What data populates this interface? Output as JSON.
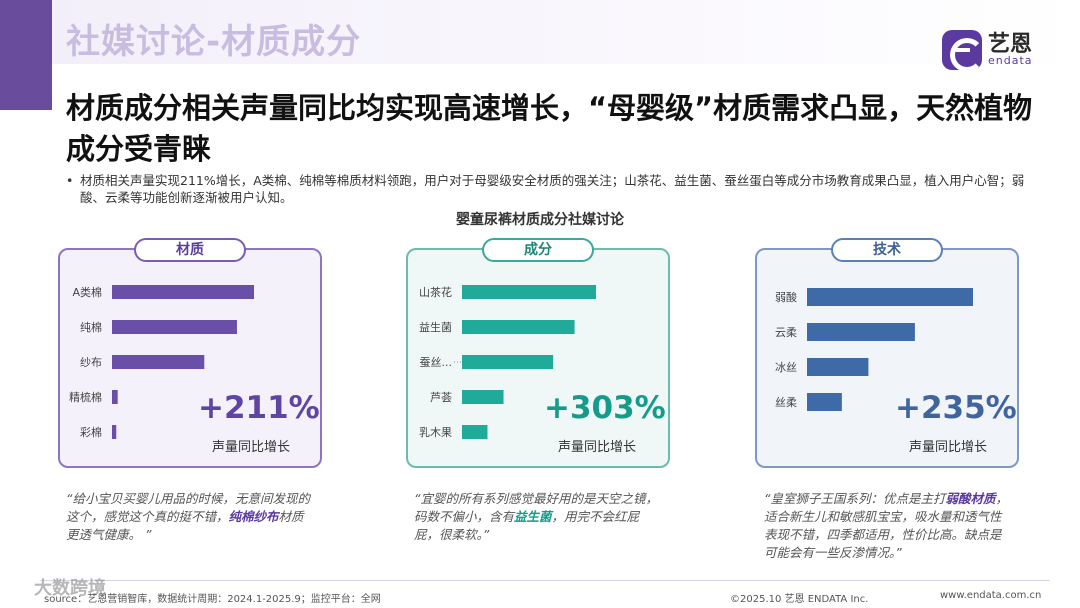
{
  "header": {
    "section_title": "社媒讨论-材质成分",
    "logo_cn": "艺恩",
    "logo_en": "endata"
  },
  "headline": "材质成分相关声量同比均实现高速增长，“母婴级”材质需求凸显，天然植物成分受青睐",
  "bullet": "材质相关声量实现211%增长，A类棉、纯棉等棉质材料领跑，用户对于母婴级安全材质的强关注；山茶花、益生菌、蚕丝蛋白等成分市场教育成果凸显，植入用户心智；弱酸、云柔等功能创新逐渐被用户认知。",
  "chart_title": "婴童尿裤材质成分社媒讨论",
  "colors": {
    "purple": "#6a4fa8",
    "teal": "#1faa99",
    "blue": "#3f6aa8"
  },
  "chart_data": [
    {
      "type": "bar",
      "orientation": "horizontal",
      "title": "材质",
      "categories": [
        "A类棉",
        "纯棉",
        "纱布",
        "精梳棉",
        "彩棉"
      ],
      "values": [
        100,
        88,
        65,
        4,
        3
      ],
      "xlim": [
        0,
        100
      ],
      "growth": "+211%",
      "growth_label": "声量同比增长",
      "color": "#6a4fa8"
    },
    {
      "type": "bar",
      "orientation": "horizontal",
      "title": "成分",
      "categories": [
        "山茶花",
        "益生菌",
        "蚕丝...",
        "芦荟",
        "乳木果"
      ],
      "values": [
        100,
        84,
        68,
        31,
        19
      ],
      "xlim": [
        0,
        100
      ],
      "growth": "+303%",
      "growth_label": "声量同比增长",
      "color": "#1faa99"
    },
    {
      "type": "bar",
      "orientation": "horizontal",
      "title": "技术",
      "categories": [
        "弱酸",
        "云柔",
        "冰丝",
        "丝柔"
      ],
      "values": [
        100,
        65,
        37,
        21
      ],
      "xlim": [
        0,
        100
      ],
      "growth": "+235%",
      "growth_label": "声量同比增长",
      "color": "#3f6aa8"
    }
  ],
  "quotes": [
    {
      "pre": "“给小宝贝买婴儿用品的时候，无意间发现的这个，感觉这个真的挺不错，",
      "hl": "纯棉纱布",
      "post": "材质更透气健康。 ”"
    },
    {
      "pre": "“宜婴的所有系列感觉最好用的是天空之镜，码数不偏小，含有",
      "hl": "益生菌",
      "post": "，用完不会红屁屁，很柔软。”"
    },
    {
      "pre": "“皇室狮子王国系列：优点是主打",
      "hl": "弱酸材质",
      "post": "，适合新生儿和敏感肌宝宝，吸水量和透气性表现不错，四季都适用，性价比高。缺点是可能会有一些反渗情况。”"
    }
  ],
  "footer": {
    "source": "source：艺恩营销智库，数据统计周期：2024.1-2025.9；监控平台：全网",
    "copyright": "©2025.10  艺恩 ENDATA Inc.",
    "url": "www.endata.com.cn",
    "watermark": "大数跨境"
  }
}
